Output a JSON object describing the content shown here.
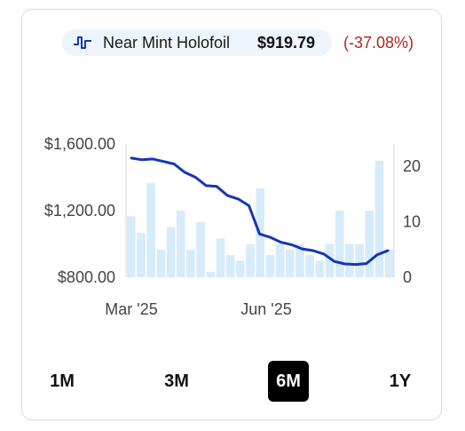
{
  "legend": {
    "icon": "step-line-icon",
    "name": "Near Mint Holofoil",
    "price": "$919.79",
    "change": "(-37.08%)",
    "change_color": "#b3261e"
  },
  "colors": {
    "line": "#1536b5",
    "bar": "#d6ecfa",
    "axis": "#d9d9d9"
  },
  "chart_data": {
    "type": "bar+line",
    "x_ticks": [
      "Mar '25",
      "Jun '25"
    ],
    "y_left": {
      "ticks": [
        "$1,600.00",
        "$1,200.00",
        "$800.00"
      ],
      "range": [
        800,
        1600
      ]
    },
    "y_right": {
      "ticks": [
        "20",
        "10",
        "0"
      ],
      "range": [
        0,
        24
      ]
    },
    "bars": [
      11,
      8,
      17,
      5,
      9,
      12,
      5,
      10,
      1,
      7,
      4,
      3,
      6,
      16,
      4,
      6,
      5,
      6,
      4,
      3,
      6,
      12,
      6,
      6,
      12,
      21,
      5
    ],
    "price": [
      1515,
      1505,
      1510,
      1495,
      1480,
      1430,
      1400,
      1350,
      1345,
      1290,
      1270,
      1230,
      1060,
      1040,
      1010,
      995,
      970,
      960,
      940,
      895,
      880,
      877,
      882,
      935,
      960
    ]
  },
  "ranges": [
    {
      "label": "1M",
      "active": false
    },
    {
      "label": "3M",
      "active": false
    },
    {
      "label": "6M",
      "active": true
    },
    {
      "label": "1Y",
      "active": false
    }
  ]
}
